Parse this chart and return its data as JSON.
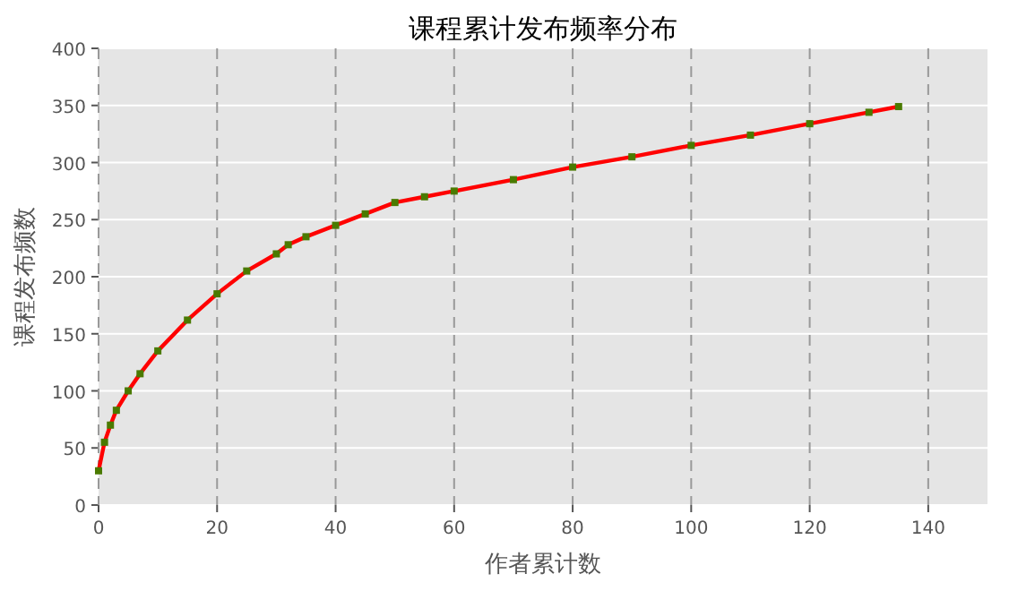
{
  "chart_data": {
    "type": "line",
    "title": "课程累计发布频率分布",
    "xlabel": "作者累计数",
    "ylabel": "课程发布频数",
    "x": [
      0,
      1,
      2,
      3,
      5,
      7,
      10,
      15,
      20,
      25,
      30,
      32,
      35,
      40,
      45,
      50,
      55,
      60,
      70,
      80,
      90,
      100,
      110,
      120,
      130,
      135
    ],
    "series": [
      {
        "color": "#ff0000",
        "marker": "none",
        "values": [
          30,
          55,
          70,
          83,
          100,
          115,
          135,
          162,
          185,
          205,
          220,
          228,
          235,
          245,
          255,
          265,
          270,
          275,
          285,
          296,
          305,
          315,
          324,
          334,
          344,
          349
        ]
      },
      {
        "type": "scatter",
        "color": "#4a7a00",
        "marker": "square",
        "values": [
          30,
          55,
          70,
          83,
          100,
          115,
          135,
          162,
          185,
          205,
          220,
          228,
          235,
          245,
          255,
          265,
          270,
          275,
          285,
          296,
          305,
          315,
          324,
          334,
          344,
          349
        ]
      }
    ],
    "xlim": [
      0,
      150
    ],
    "ylim": [
      0,
      400
    ],
    "xticks": [
      0,
      20,
      40,
      60,
      80,
      100,
      120,
      140
    ],
    "yticks": [
      0,
      50,
      100,
      150,
      200,
      250,
      300,
      350,
      400
    ],
    "grid": true
  }
}
